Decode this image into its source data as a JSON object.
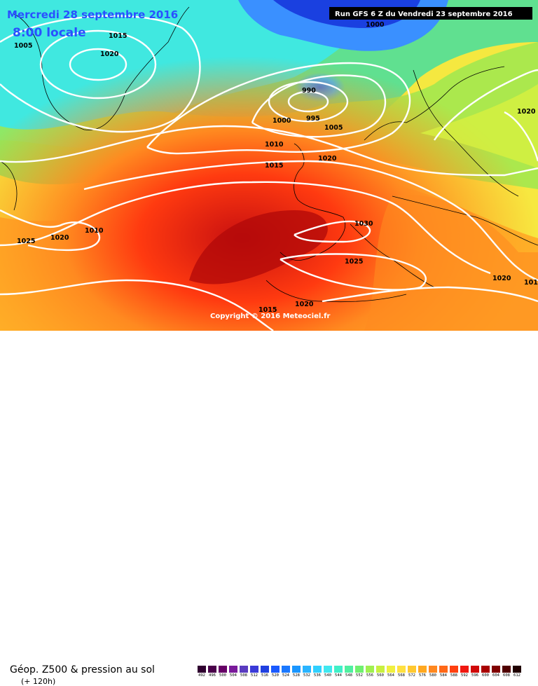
{
  "header": {
    "date": "Mercredi 28 septembre 2016",
    "time": "8:00 locale",
    "run": "Run GFS 6 Z du Vendredi 23 septembre 2016"
  },
  "copyright": "Copyright © 2016 Meteociel.fr",
  "footer": {
    "title": "Géop. Z500 & pression au sol",
    "subtitle": "(+ 120h)"
  },
  "isobars": [
    "1005",
    "1015",
    "1020",
    "990",
    "995",
    "1000",
    "1005",
    "1000",
    "1010",
    "1015",
    "1020",
    "1030",
    "1025",
    "1010",
    "1020",
    "1025",
    "1015",
    "1020",
    "1020",
    "1020",
    "101"
  ],
  "colorscale": {
    "values": [
      "492",
      "496",
      "500",
      "504",
      "508",
      "512",
      "516",
      "520",
      "524",
      "528",
      "532",
      "536",
      "540",
      "544",
      "548",
      "552",
      "556",
      "560",
      "564",
      "568",
      "572",
      "576",
      "580",
      "584",
      "588",
      "592",
      "596",
      "600",
      "604",
      "608",
      "612"
    ],
    "colors": [
      "#300030",
      "#4a004a",
      "#660066",
      "#7a1a9a",
      "#5a3cc0",
      "#3a3ad8",
      "#2040e0",
      "#1a5aff",
      "#1a78ff",
      "#1a96ff",
      "#2ab4ff",
      "#30d0ff",
      "#40e8f0",
      "#40f0c8",
      "#50f0a0",
      "#70f070",
      "#a0f050",
      "#c8f040",
      "#f0f040",
      "#ffe040",
      "#ffc830",
      "#ffa820",
      "#ff8820",
      "#ff6818",
      "#ff4010",
      "#f01810",
      "#d00808",
      "#a80000",
      "#800000",
      "#500000",
      "#200000"
    ]
  }
}
